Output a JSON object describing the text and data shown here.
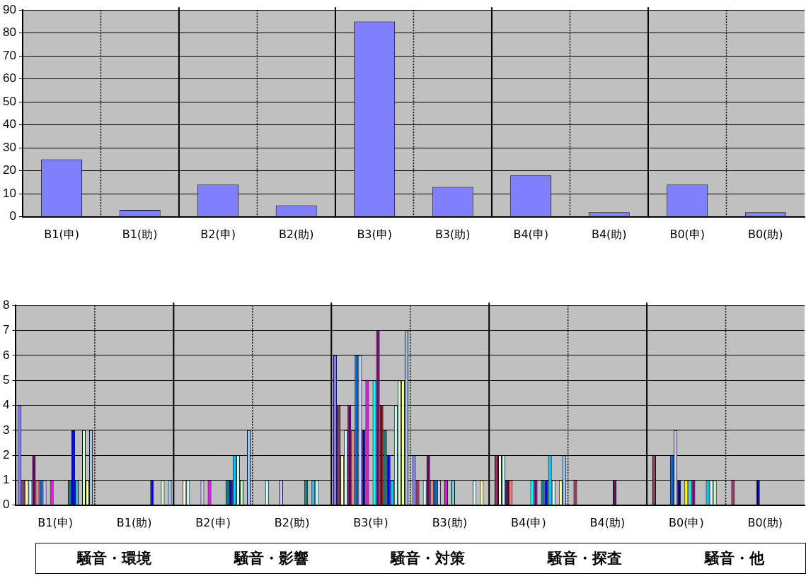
{
  "chart_data": [
    {
      "type": "bar",
      "categories": [
        "B1(申)",
        "B1(助)",
        "B2(申)",
        "B2(助)",
        "B3(申)",
        "B3(助)",
        "B4(申)",
        "B4(助)",
        "B0(申)",
        "B0(助)"
      ],
      "series": [
        {
          "color": "#8080ff",
          "values": [
            25,
            3,
            14,
            5,
            85,
            13,
            18,
            2,
            14,
            2
          ]
        }
      ],
      "ylim": [
        0,
        90
      ],
      "yticks": [
        0,
        10,
        20,
        30,
        40,
        50,
        60,
        70,
        80,
        90
      ],
      "grid": true,
      "legend": false
    },
    {
      "type": "bar",
      "categories": [
        "B1(申)",
        "B1(助)",
        "B2(申)",
        "B2(助)",
        "B3(申)",
        "B3(助)",
        "B4(申)",
        "B4(助)",
        "B0(申)",
        "B0(助)"
      ],
      "series": [
        {
          "color": "#8080ff",
          "values": [
            4,
            0,
            0,
            0,
            6,
            2,
            0,
            0,
            0,
            0
          ]
        },
        {
          "color": "#993366",
          "values": [
            1,
            0,
            0,
            0,
            4,
            1,
            2,
            1,
            2,
            1
          ]
        },
        {
          "color": "#ffffcc",
          "values": [
            1,
            0,
            1,
            0,
            2,
            0,
            2,
            0,
            0,
            0
          ]
        },
        {
          "color": "#ccffff",
          "values": [
            1,
            0,
            1,
            1,
            3,
            1,
            2,
            0,
            0,
            0
          ]
        },
        {
          "color": "#660066",
          "values": [
            2,
            0,
            0,
            0,
            4,
            2,
            1,
            0,
            0,
            0
          ]
        },
        {
          "color": "#ff8080",
          "values": [
            1,
            0,
            0,
            0,
            3,
            1,
            1,
            0,
            0,
            0
          ]
        },
        {
          "color": "#0066cc",
          "values": [
            1,
            0,
            0,
            0,
            6,
            1,
            0,
            0,
            2,
            0
          ]
        },
        {
          "color": "#ccccff",
          "values": [
            1,
            0,
            1,
            1,
            6,
            1,
            0,
            0,
            3,
            0
          ]
        },
        {
          "color": "#000080",
          "values": [
            0,
            0,
            0,
            0,
            3,
            0,
            0,
            0,
            1,
            1
          ]
        },
        {
          "color": "#ff00ff",
          "values": [
            1,
            0,
            1,
            0,
            5,
            1,
            0,
            0,
            0,
            0
          ]
        },
        {
          "color": "#ffff00",
          "values": [
            0,
            0,
            0,
            0,
            0,
            0,
            0,
            0,
            1,
            0
          ]
        },
        {
          "color": "#00ffff",
          "values": [
            0,
            0,
            0,
            0,
            5,
            1,
            1,
            0,
            1,
            0
          ]
        },
        {
          "color": "#800080",
          "values": [
            0,
            0,
            0,
            0,
            7,
            0,
            1,
            1,
            1,
            0
          ]
        },
        {
          "color": "#800000",
          "values": [
            0,
            0,
            0,
            0,
            4,
            0,
            0,
            0,
            0,
            0
          ]
        },
        {
          "color": "#008080",
          "values": [
            1,
            0,
            1,
            1,
            3,
            0,
            1,
            0,
            0,
            0
          ]
        },
        {
          "color": "#0000ff",
          "values": [
            3,
            1,
            1,
            0,
            2,
            0,
            1,
            0,
            0,
            0
          ]
        },
        {
          "color": "#00ccff",
          "values": [
            1,
            0,
            2,
            1,
            1,
            0,
            2,
            0,
            1,
            0
          ]
        },
        {
          "color": "#ccffff",
          "values": [
            0,
            0,
            2,
            1,
            4,
            1,
            1,
            0,
            1,
            0
          ]
        },
        {
          "color": "#ccffcc",
          "values": [
            3,
            1,
            1,
            0,
            5,
            0,
            0,
            0,
            1,
            0
          ]
        },
        {
          "color": "#ffff99",
          "values": [
            1,
            0,
            0,
            0,
            5,
            1,
            1,
            0,
            0,
            0
          ]
        },
        {
          "color": "#99ccff",
          "values": [
            3,
            1,
            3,
            0,
            7,
            0,
            2,
            0,
            0,
            0
          ]
        }
      ],
      "ylim": [
        0,
        8
      ],
      "yticks": [
        0,
        1,
        2,
        3,
        4,
        5,
        6,
        7,
        8
      ],
      "grid": true,
      "legend": false,
      "annotations": [
        "騒音・環境",
        "騒音・影響",
        "騒音・対策",
        "騒音・探査",
        "騒音・他"
      ]
    }
  ]
}
